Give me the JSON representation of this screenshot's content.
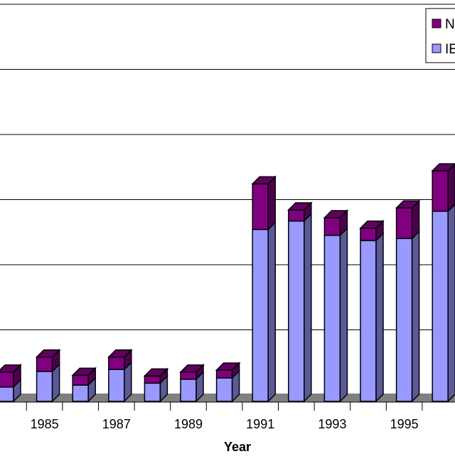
{
  "chart_data": {
    "type": "bar",
    "stacked": true,
    "three_d": true,
    "xlabel": "Year",
    "ylabel": "",
    "categories": [
      "1984",
      "1985",
      "1986",
      "1987",
      "1988",
      "1989",
      "1990",
      "1991",
      "1992",
      "1993",
      "1994",
      "1995",
      "1996"
    ],
    "tick_labels": [
      "1985",
      "1987",
      "1989",
      "1991",
      "1993",
      "1995"
    ],
    "ylim": [
      0,
      6
    ],
    "y_units_note_visible": false,
    "grid": true,
    "legend_placement": "top-right",
    "series": [
      {
        "name": "IE",
        "color": "#9999ff",
        "values": [
          0.22,
          0.46,
          0.25,
          0.49,
          0.28,
          0.34,
          0.36,
          2.64,
          2.77,
          2.55,
          2.47,
          2.5,
          2.92
        ]
      },
      {
        "name": "N",
        "color": "#800080",
        "values": [
          0.23,
          0.22,
          0.15,
          0.19,
          0.11,
          0.11,
          0.12,
          0.7,
          0.17,
          0.27,
          0.19,
          0.47,
          0.62
        ]
      }
    ]
  }
}
